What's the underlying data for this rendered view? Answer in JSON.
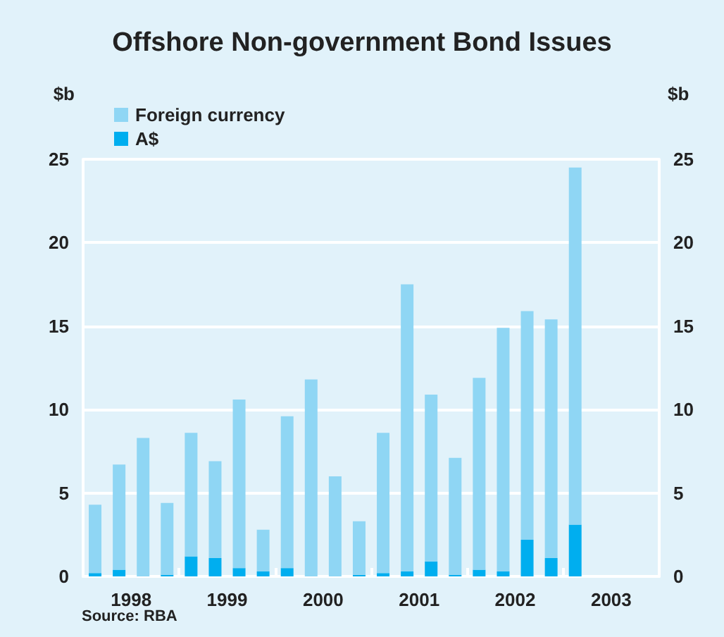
{
  "chart_data": {
    "type": "bar",
    "title": "Offshore Non-government Bond Issues",
    "ylabel": "$b",
    "y2label": "$b",
    "annotations": [
      "Source: RBA"
    ],
    "x": [
      1998.125,
      1998.375,
      1998.625,
      1998.875,
      1999.125,
      1999.375,
      1999.625,
      1999.875,
      2000.125,
      2000.375,
      2000.625,
      2000.875,
      2001.125,
      2001.375,
      2001.625,
      2001.875,
      2002.125,
      2002.375,
      2002.625,
      2002.875,
      2003.125
    ],
    "xlim": [
      1998,
      2004
    ],
    "xticks": [
      {
        "value": 1998,
        "label": null
      },
      {
        "value": 1998.5,
        "label": "1998"
      },
      {
        "value": 1999,
        "label": null
      },
      {
        "value": 1999.5,
        "label": "1999"
      },
      {
        "value": 2000,
        "label": null
      },
      {
        "value": 2000.5,
        "label": "2000"
      },
      {
        "value": 2001,
        "label": null
      },
      {
        "value": 2001.5,
        "label": "2001"
      },
      {
        "value": 2002,
        "label": null
      },
      {
        "value": 2002.5,
        "label": "2002"
      },
      {
        "value": 2003,
        "label": null
      },
      {
        "value": 2003.5,
        "label": "2003"
      },
      {
        "value": 2004,
        "label": null
      }
    ],
    "ylim": [
      0,
      25
    ],
    "yticks": [
      0,
      5,
      10,
      15,
      20,
      25
    ],
    "y2lim": [
      0,
      25
    ],
    "y2ticks": [
      0,
      5,
      10,
      15,
      20,
      25
    ],
    "stacked": true,
    "grid": "y",
    "legend": "top left",
    "series": [
      {
        "name": "A$",
        "color": "#00aeef",
        "values": [
          0.2,
          0.4,
          0,
          0.1,
          1.2,
          1.1,
          0.5,
          0.3,
          0.5,
          0,
          0,
          0.1,
          0.2,
          0.3,
          0.9,
          0.1,
          0.4,
          0.3,
          2.2,
          1.1,
          3.1
        ]
      },
      {
        "name": "Foreign currency",
        "color": "#8fd6f4",
        "values": [
          4.1,
          6.3,
          8.3,
          4.3,
          7.4,
          5.8,
          10.1,
          2.5,
          9.1,
          11.8,
          6.0,
          3.2,
          8.4,
          17.2,
          10.0,
          7.0,
          11.5,
          14.6,
          13.7,
          14.3,
          21.4
        ]
      }
    ]
  }
}
